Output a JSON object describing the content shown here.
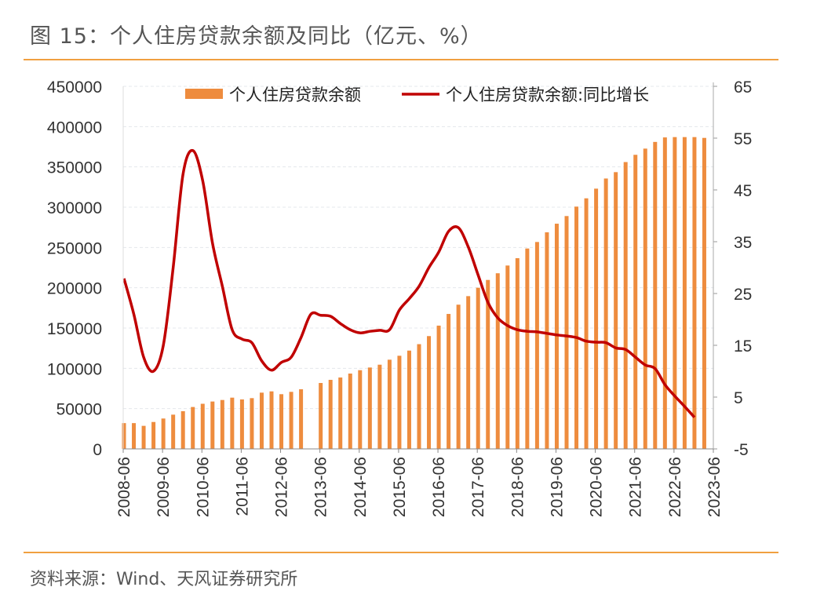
{
  "title": "图 15：个人住房贷款余额及同比（亿元、%）",
  "source": "资料来源：Wind、天风证券研究所",
  "colors": {
    "bar": "#EE8C3E",
    "line": "#C00000",
    "rule": "#F0A040"
  },
  "chart_data": {
    "type": "bar+line",
    "title": "",
    "legend": {
      "placement": "top",
      "entries": [
        "个人住房贷款余额",
        "个人住房贷款余额:同比增长"
      ]
    },
    "x_ticks": [
      "2008-06",
      "2009-06",
      "2010-06",
      "2011-06",
      "2012-06",
      "2013-06",
      "2014-06",
      "2015-06",
      "2016-06",
      "2017-06",
      "2018-06",
      "2019-06",
      "2020-06",
      "2021-06",
      "2022-06",
      "2023-06"
    ],
    "y_left": {
      "range": [
        0,
        450000
      ],
      "ticks": [
        "0",
        "50000",
        "100000",
        "150000",
        "200000",
        "250000",
        "300000",
        "350000",
        "400000",
        "450000"
      ]
    },
    "y_right": {
      "range": [
        -5,
        65
      ],
      "ticks": [
        "-5",
        "5",
        "15",
        "25",
        "35",
        "45",
        "55",
        "65"
      ]
    },
    "grid": true,
    "categories": [
      "2008-06",
      "2008-09",
      "2008-12",
      "2009-03",
      "2009-06",
      "2009-09",
      "2009-12",
      "2010-03",
      "2010-06",
      "2010-09",
      "2010-12",
      "2011-03",
      "2011-06",
      "2011-09",
      "2011-12",
      "2012-03",
      "2012-06",
      "2012-09",
      "2012-12",
      "2013-03",
      "2013-06",
      "2013-09",
      "2013-12",
      "2014-03",
      "2014-06",
      "2014-09",
      "2014-12",
      "2015-03",
      "2015-06",
      "2015-09",
      "2015-12",
      "2016-03",
      "2016-06",
      "2016-09",
      "2016-12",
      "2017-03",
      "2017-06",
      "2017-09",
      "2017-12",
      "2018-03",
      "2018-06",
      "2018-09",
      "2018-12",
      "2019-03",
      "2019-06",
      "2019-09",
      "2019-12",
      "2020-03",
      "2020-06",
      "2020-09",
      "2020-12",
      "2021-03",
      "2021-06",
      "2021-09",
      "2021-12",
      "2022-03",
      "2022-06",
      "2022-09",
      "2022-12",
      "2023-03"
    ],
    "series": [
      {
        "name": "个人住房贷款余额",
        "type": "bar",
        "axis": "left",
        "values": [
          32000,
          32000,
          28600,
          33400,
          37700,
          42500,
          46800,
          52000,
          56000,
          58800,
          60700,
          63600,
          61400,
          63000,
          69800,
          71400,
          67900,
          70800,
          74000,
          null,
          81800,
          85700,
          88600,
          93500,
          97700,
          101000,
          104500,
          110700,
          115600,
          122000,
          130000,
          140000,
          153000,
          167500,
          179000,
          189600,
          200000,
          209700,
          218000,
          227600,
          236700,
          248700,
          256800,
          268800,
          279500,
          289000,
          300700,
          311000,
          323000,
          335600,
          343500,
          356000,
          365000,
          372700,
          381000,
          386600,
          387000,
          387000,
          387000,
          386000
        ]
      },
      {
        "name": "个人住房贷款余额:同比增长",
        "type": "line",
        "axis": "right",
        "values": [
          27.9,
          21,
          12.7,
          10,
          15,
          30,
          48,
          52.6,
          46.8,
          34.7,
          26.4,
          18,
          16.2,
          15.5,
          12,
          10.2,
          11.7,
          12.7,
          16.5,
          21,
          20.8,
          20.6,
          19.2,
          18,
          17.4,
          17.7,
          17.9,
          18,
          21.8,
          24,
          26.4,
          30,
          33,
          37,
          37.7,
          34,
          28.6,
          23.3,
          20.3,
          18.8,
          18,
          17.7,
          17.6,
          17.3,
          17,
          16.8,
          16.5,
          15.8,
          15.6,
          15.5,
          14.5,
          14.2,
          12.7,
          11.2,
          10.5,
          7.4,
          5.2,
          3.2,
          1.1,
          null
        ]
      }
    ]
  }
}
